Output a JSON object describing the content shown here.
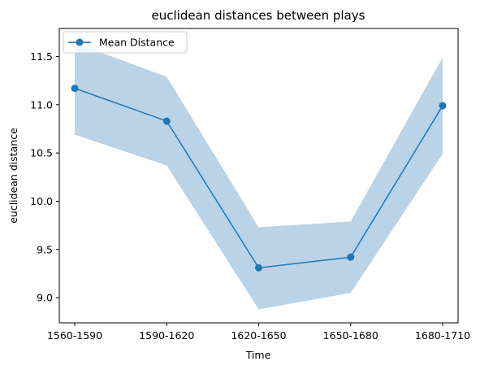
{
  "chart_data": {
    "type": "line",
    "title": "euclidean distances between plays",
    "xlabel": "Time",
    "ylabel": "euclidean distance",
    "categories": [
      "1560-1590",
      "1590-1620",
      "1620-1650",
      "1650-1680",
      "1680-1710"
    ],
    "series": [
      {
        "name": "Mean Distance",
        "values": [
          11.17,
          10.83,
          9.31,
          9.42,
          10.99
        ],
        "band_lower": [
          10.69,
          10.37,
          8.88,
          9.05,
          10.49
        ],
        "band_upper": [
          11.64,
          11.29,
          9.73,
          9.79,
          11.49
        ],
        "color": "#1f77b4",
        "band_color": "#bad3e6"
      }
    ],
    "ylim": [
      8.74,
      11.79
    ],
    "yticks": [
      9.0,
      9.5,
      10.0,
      10.5,
      11.0,
      11.5
    ],
    "ytick_labels": [
      "9.0",
      "9.5",
      "10.0",
      "10.5",
      "11.0",
      "11.5"
    ],
    "grid": false,
    "legend_position": "top-left"
  }
}
